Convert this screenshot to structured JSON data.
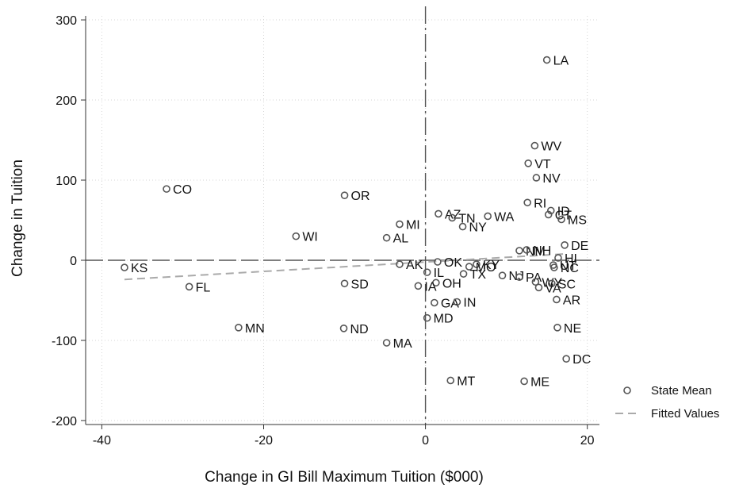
{
  "chart_data": {
    "type": "scatter",
    "xlabel": "Change in GI Bill Maximum Tuition ($000)",
    "ylabel": "Change in Tuition",
    "xlim": [
      -42,
      21.5
    ],
    "ylim": [
      -205,
      305
    ],
    "xticks": [
      -40,
      -20,
      0,
      20
    ],
    "yticks": [
      -200,
      -100,
      0,
      100,
      200,
      300
    ],
    "grid": true,
    "legend_position": "right",
    "reference_lines": {
      "x": 0,
      "y": 0
    },
    "series": [
      {
        "name": "State Mean",
        "marker": "hollow-circle",
        "color": "#555555",
        "points": [
          {
            "label": "LA",
            "x": 15,
            "y": 250
          },
          {
            "label": "WV",
            "x": 13.5,
            "y": 143
          },
          {
            "label": "VT",
            "x": 12.7,
            "y": 121
          },
          {
            "label": "NV",
            "x": 13.7,
            "y": 103
          },
          {
            "label": "CO",
            "x": -32,
            "y": 89
          },
          {
            "label": "OR",
            "x": -10,
            "y": 81
          },
          {
            "label": "RI",
            "x": 12.6,
            "y": 72
          },
          {
            "label": "ID",
            "x": 15.5,
            "y": 62
          },
          {
            "label": "AZ",
            "x": 1.6,
            "y": 58
          },
          {
            "label": "CT",
            "x": 15.2,
            "y": 57
          },
          {
            "label": "WA",
            "x": 7.7,
            "y": 55
          },
          {
            "label": "TN",
            "x": 3.3,
            "y": 53
          },
          {
            "label": "MS",
            "x": 16.8,
            "y": 51
          },
          {
            "label": "MI",
            "x": -3.2,
            "y": 45
          },
          {
            "label": "NY",
            "x": 4.6,
            "y": 42
          },
          {
            "label": "WI",
            "x": -16,
            "y": 30
          },
          {
            "label": "AL",
            "x": -4.8,
            "y": 28
          },
          {
            "label": "DE",
            "x": 17.2,
            "y": 19
          },
          {
            "label": "NM",
            "x": 11.6,
            "y": 12
          },
          {
            "label": "NH",
            "x": 12.5,
            "y": 13
          },
          {
            "label": "HI",
            "x": 16.4,
            "y": 3
          },
          {
            "label": "OK",
            "x": 1.5,
            "y": -2
          },
          {
            "label": "AK",
            "x": -3.2,
            "y": -5
          },
          {
            "label": "KY",
            "x": 6.3,
            "y": -5
          },
          {
            "label": "UT",
            "x": 15.8,
            "y": -6
          },
          {
            "label": "NC",
            "x": 15.9,
            "y": -9
          },
          {
            "label": "MO",
            "x": 5.4,
            "y": -8
          },
          {
            "label": "KS",
            "x": -37.2,
            "y": -9
          },
          {
            "label": "IL",
            "x": 0.2,
            "y": -15
          },
          {
            "label": "TX",
            "x": 4.7,
            "y": -17
          },
          {
            "label": "NJ",
            "x": 9.5,
            "y": -19
          },
          {
            "label": "PA",
            "x": 11.6,
            "y": -21
          },
          {
            "label": "WY",
            "x": 13.6,
            "y": -27
          },
          {
            "label": "SC",
            "x": 15.6,
            "y": -29
          },
          {
            "label": "OH",
            "x": 1.3,
            "y": -28
          },
          {
            "label": "SD",
            "x": -10,
            "y": -29
          },
          {
            "label": "IA",
            "x": -0.9,
            "y": -32
          },
          {
            "label": "FL",
            "x": -29.2,
            "y": -33
          },
          {
            "label": "VA",
            "x": 14,
            "y": -34
          },
          {
            "label": "AR",
            "x": 16.2,
            "y": -49
          },
          {
            "label": "GA",
            "x": 1.1,
            "y": -53
          },
          {
            "label": "IN",
            "x": 3.9,
            "y": -52
          },
          {
            "label": "MD",
            "x": 0.2,
            "y": -72
          },
          {
            "label": "MN",
            "x": -23.1,
            "y": -84
          },
          {
            "label": "ND",
            "x": -10.1,
            "y": -85
          },
          {
            "label": "NE",
            "x": 16.3,
            "y": -84
          },
          {
            "label": "MA",
            "x": -4.8,
            "y": -103
          },
          {
            "label": "DC",
            "x": 17.4,
            "y": -123
          },
          {
            "label": "MT",
            "x": 3.1,
            "y": -150
          },
          {
            "label": "ME",
            "x": 12.2,
            "y": -151
          }
        ]
      },
      {
        "name": "Fitted Values",
        "type": "line",
        "style": "dashed",
        "color": "#aaaaaa",
        "points": [
          {
            "x": -37.2,
            "y": -24
          },
          {
            "x": 17.4,
            "y": 8
          }
        ]
      }
    ]
  }
}
